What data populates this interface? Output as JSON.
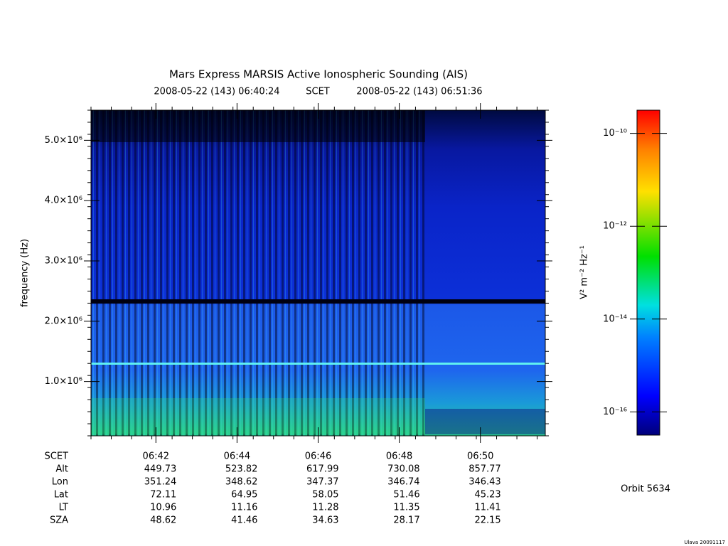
{
  "chart_data": {
    "type": "spectrogram",
    "title": "Mars Express MARSIS Active Ionospheric Sounding (AIS)",
    "time_start": "2008-05-22 (143) 06:40:24",
    "time_label": "SCET",
    "time_end": "2008-05-22 (143) 06:51:36",
    "ylabel": "frequency (Hz)",
    "ylim": [
      100000,
      5500000
    ],
    "yticks": [
      {
        "value": 1000000,
        "label": "1.0×10⁶"
      },
      {
        "value": 2000000,
        "label": "2.0×10⁶"
      },
      {
        "value": 3000000,
        "label": "3.0×10⁶"
      },
      {
        "value": 4000000,
        "label": "4.0×10⁶"
      },
      {
        "value": 5000000,
        "label": "5.0×10⁶"
      }
    ],
    "xlim": [
      40.4,
      51.6
    ],
    "xticks": [
      {
        "value": 42,
        "label": "06:42"
      },
      {
        "value": 44,
        "label": "06:44"
      },
      {
        "value": 46,
        "label": "06:46"
      },
      {
        "value": 48,
        "label": "06:48"
      },
      {
        "value": 50,
        "label": "06:50"
      }
    ],
    "ephemeris": {
      "row_labels": [
        "SCET",
        "Alt",
        "Lon",
        "Lat",
        "LT",
        "SZA"
      ],
      "rows": [
        [
          449.73,
          523.82,
          617.99,
          730.08,
          857.77
        ],
        [
          351.24,
          348.62,
          347.37,
          346.74,
          346.43
        ],
        [
          72.11,
          64.95,
          58.05,
          51.46,
          45.23
        ],
        [
          10.96,
          11.16,
          11.28,
          11.35,
          11.41
        ],
        [
          48.62,
          41.46,
          34.63,
          28.17,
          22.15
        ]
      ]
    },
    "colorbar_label": "V² m⁻² Hz⁻¹",
    "colorbar_log": true,
    "clim": [
      3.16e-17,
      3.16e-10
    ],
    "cticks": [
      {
        "value": 1e-16,
        "label": "10⁻¹⁶"
      },
      {
        "value": 1e-14,
        "label": "10⁻¹⁴"
      },
      {
        "value": 1e-12,
        "label": "10⁻¹²"
      },
      {
        "value": 1e-10,
        "label": "10⁻¹⁰"
      }
    ],
    "orbit": "Orbit 5634",
    "footer": "Ulava 20091117"
  }
}
